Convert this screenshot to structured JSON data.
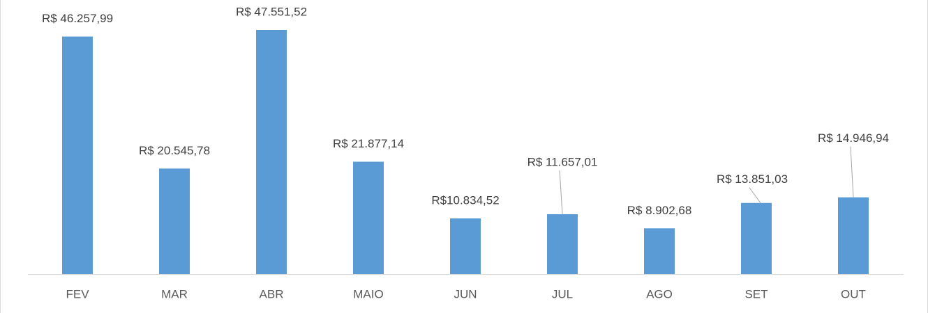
{
  "chart_data": {
    "type": "bar",
    "categories": [
      "FEV",
      "MAR",
      "ABR",
      "MAIO",
      "JUN",
      "JUL",
      "AGO",
      "SET",
      "OUT"
    ],
    "values": [
      46257.99,
      20545.78,
      47551.52,
      21877.14,
      10834.52,
      11657.01,
      8902.68,
      13851.03,
      14946.94
    ],
    "value_labels": [
      "R$ 46.257,99",
      "R$ 20.545,78",
      "R$ 47.551,52",
      "R$ 21.877,14",
      "R$10.834,52",
      "R$ 11.657,01",
      "R$ 8.902,68",
      "R$ 13.851,03",
      "R$ 14.946,94"
    ],
    "color": "#5b9bd5"
  }
}
